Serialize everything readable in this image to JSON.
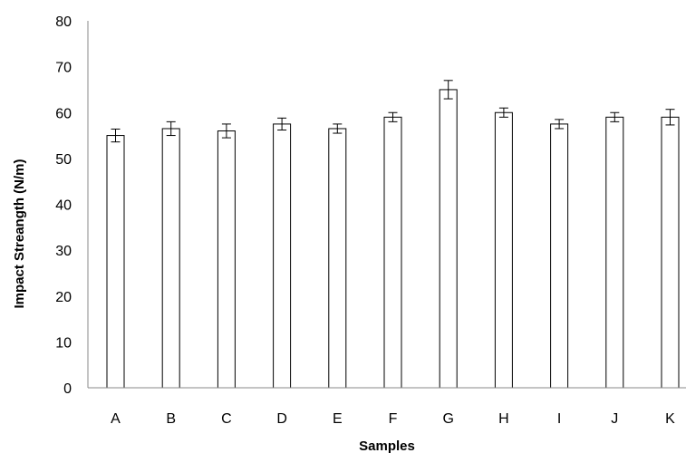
{
  "chart_data": {
    "type": "bar",
    "title": "",
    "xlabel": "Samples",
    "ylabel": "Impact  Streangth (N/m)",
    "categories": [
      "A",
      "B",
      "C",
      "D",
      "E",
      "F",
      "G",
      "H",
      "I",
      "J",
      "K"
    ],
    "values": [
      55,
      56.5,
      56,
      57.5,
      56.5,
      59,
      65,
      60,
      57.5,
      59,
      59
    ],
    "errors": [
      1.4,
      1.5,
      1.5,
      1.3,
      1.0,
      1.0,
      2.0,
      1.0,
      1.0,
      1.0,
      1.7
    ],
    "ylim": [
      0,
      80
    ],
    "yticks": [
      0,
      10,
      20,
      30,
      40,
      50,
      60,
      70,
      80
    ],
    "grid": false,
    "legend": "none",
    "bar_fill": "#ffffff",
    "bar_stroke": "#000000"
  }
}
